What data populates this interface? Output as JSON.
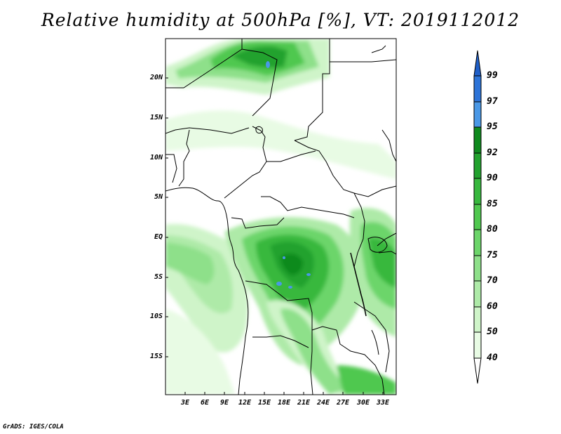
{
  "title": "Relative humidity at 500hPa [%], VT: 2019112012",
  "credit": "GrADS: IGES/COLA",
  "lat_labels": [
    "20N",
    "15N",
    "10N",
    "5N",
    "EQ",
    "5S",
    "10S",
    "15S"
  ],
  "lon_labels": [
    "3E",
    "6E",
    "9E",
    "12E",
    "15E",
    "18E",
    "21E",
    "24E",
    "27E",
    "30E",
    "33E"
  ],
  "colorbar": {
    "levels": [
      "99",
      "97",
      "95",
      "92",
      "90",
      "85",
      "80",
      "75",
      "70",
      "60",
      "50",
      "40"
    ],
    "colors": {
      "above99": "#1f5fc8",
      "97_99": "#2d74d8",
      "95_97": "#4a98e6",
      "92_95": "#0f8a1e",
      "90_92": "#22a22e",
      "85_90": "#37b83e",
      "80_85": "#50c84f",
      "75_80": "#6cd56a",
      "70_75": "#8ee08a",
      "60_70": "#aeeaa8",
      "50_60": "#cff4c9",
      "40_50": "#e8fbe4",
      "below40": "#ffffff"
    }
  }
}
